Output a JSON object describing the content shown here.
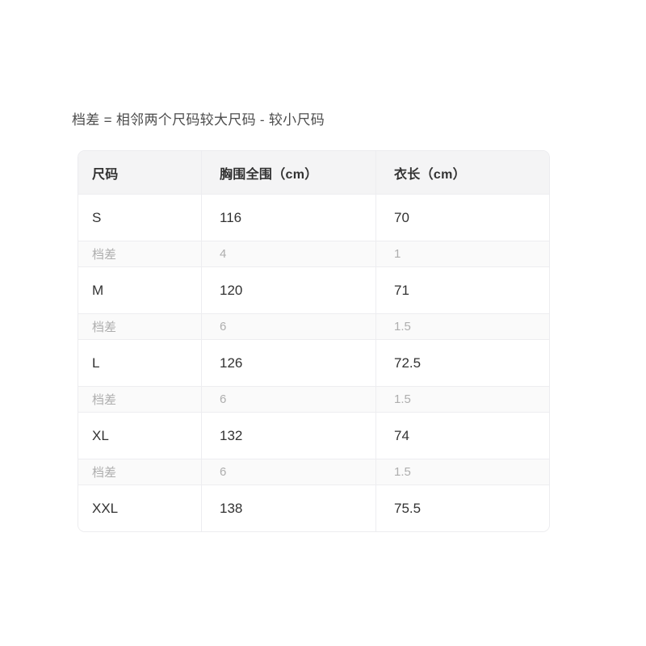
{
  "note": {
    "text": "档差 = 相邻两个尺码较大尺码 - 较小尺码"
  },
  "table": {
    "columns": [
      {
        "label": "尺码"
      },
      {
        "label": "胸围全围（cm）"
      },
      {
        "label": "衣长（cm）"
      }
    ],
    "rows": [
      {
        "type": "size",
        "cells": [
          "S",
          "116",
          "70"
        ]
      },
      {
        "type": "diff",
        "cells": [
          "档差",
          "4",
          "1"
        ]
      },
      {
        "type": "size",
        "cells": [
          "M",
          "120",
          "71"
        ]
      },
      {
        "type": "diff",
        "cells": [
          "档差",
          "6",
          "1.5"
        ]
      },
      {
        "type": "size",
        "cells": [
          "L",
          "126",
          "72.5"
        ]
      },
      {
        "type": "diff",
        "cells": [
          "档差",
          "6",
          "1.5"
        ]
      },
      {
        "type": "size",
        "cells": [
          "XL",
          "132",
          "74"
        ]
      },
      {
        "type": "diff",
        "cells": [
          "档差",
          "6",
          "1.5"
        ]
      },
      {
        "type": "size",
        "cells": [
          "XXL",
          "138",
          "75.5"
        ]
      }
    ],
    "colors": {
      "header_bg": "#f4f4f5",
      "diff_row_bg": "#fafafa",
      "border": "#ededf0",
      "text_dark": "#323232",
      "text_gray": "#aeaeae",
      "note_text": "#4c4c4c"
    }
  }
}
